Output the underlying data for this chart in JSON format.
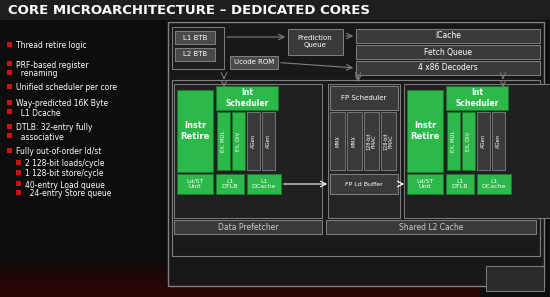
{
  "title": "CORE MICROARCHITECTURE – DEDICATED CORES",
  "bg": "#0d0d0d",
  "title_color": "#ffffff",
  "red": "#cc1111",
  "green": "#2db84a",
  "dkgreen": "#1a7a30",
  "dgray": "#3a3a3a",
  "mgray": "#4a4a4a",
  "lgray": "#808080",
  "wht": "#ffffff",
  "lwht": "#cccccc",
  "diag_bg": "#181818",
  "core_bg": "#222222",
  "fp_bg": "#2e2e2e",
  "bullets": [
    [
      46,
      false,
      "Thread retire logic"
    ],
    [
      65,
      false,
      "PRF-based register"
    ],
    [
      74,
      false,
      "  renaming"
    ],
    [
      88,
      false,
      "Unified scheduler per core"
    ],
    [
      104,
      false,
      "Way-predicted 16K Byte"
    ],
    [
      113,
      false,
      "  L1 Dcache"
    ],
    [
      128,
      false,
      "DTLB: 32-entry fully"
    ],
    [
      137,
      false,
      "  associative"
    ],
    [
      152,
      false,
      "Fully out-of-order ld/st"
    ],
    [
      164,
      true,
      "2 128-bit loads/cycle"
    ],
    [
      174,
      true,
      "1 128-bit store/cycle"
    ],
    [
      185,
      true,
      "40-entry Load queue"
    ],
    [
      194,
      true,
      "  24-entry Store queue"
    ]
  ]
}
